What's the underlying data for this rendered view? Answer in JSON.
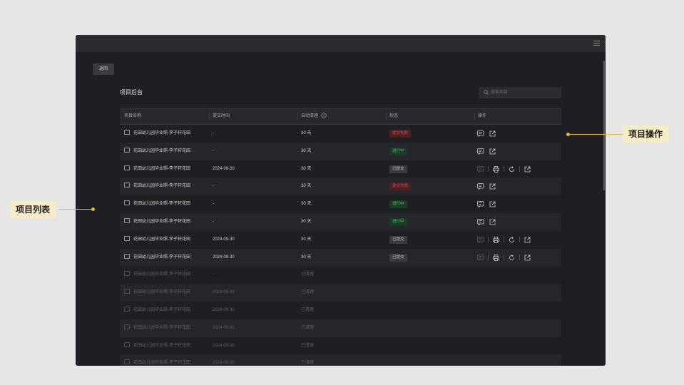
{
  "window": {
    "menu_icon": "hamburger-icon"
  },
  "back_button": "返回",
  "page_title": "项目后台",
  "search": {
    "placeholder": "搜索项目",
    "icon": "search-icon"
  },
  "table": {
    "headers": [
      "项目名称",
      "提交时间",
      "自动清理",
      "状态",
      "操作"
    ],
    "rows": [
      {
        "name": "花田幼儿园毕业照-李子轩花田",
        "time": "-",
        "cleanup": "30 天",
        "status": "提交失败",
        "status_type": "fail",
        "actions": "basic",
        "dim": false
      },
      {
        "name": "花田幼儿园毕业照-李子轩花田",
        "time": "-",
        "cleanup": "30 天",
        "status": "进行中",
        "status_type": "progress",
        "actions": "basic",
        "dim": false
      },
      {
        "name": "花田幼儿园毕业照-李子轩花田",
        "time": "2024-09-30",
        "cleanup": "30 天",
        "status": "已提交",
        "status_type": "submitted",
        "actions": "full",
        "dim": false
      },
      {
        "name": "花田幼儿园毕业照-李子轩花田",
        "time": "-",
        "cleanup": "30 天",
        "status": "提交失败",
        "status_type": "fail",
        "actions": "basic",
        "dim": false
      },
      {
        "name": "花田幼儿园毕业照-李子轩花田",
        "time": "-",
        "cleanup": "30 天",
        "status": "进行中",
        "status_type": "progress",
        "actions": "basic",
        "dim": false
      },
      {
        "name": "花田幼儿园毕业照-李子轩花田",
        "time": "-",
        "cleanup": "30 天",
        "status": "进行中",
        "status_type": "progress",
        "actions": "basic",
        "dim": false
      },
      {
        "name": "花田幼儿园毕业照-李子轩花田",
        "time": "2024-09-30",
        "cleanup": "30 天",
        "status": "已提交",
        "status_type": "submitted",
        "actions": "full",
        "dim": false
      },
      {
        "name": "花田幼儿园毕业照-李子轩花田",
        "time": "2024-09-30",
        "cleanup": "30 天",
        "status": "已提交",
        "status_type": "submitted",
        "actions": "full",
        "dim": false
      },
      {
        "name": "花田幼儿园毕业照-李子轩花田",
        "time": "-",
        "cleanup": "已清理",
        "status": "",
        "status_type": "",
        "actions": "none",
        "dim": true
      },
      {
        "name": "花田幼儿园毕业照-李子轩花田",
        "time": "2024-09-30",
        "cleanup": "已清理",
        "status": "",
        "status_type": "",
        "actions": "none",
        "dim": true
      },
      {
        "name": "花田幼儿园毕业照-李子轩花田",
        "time": "2024-09-30",
        "cleanup": "已清理",
        "status": "",
        "status_type": "",
        "actions": "none",
        "dim": true
      },
      {
        "name": "花田幼儿园毕业照-李子轩花田",
        "time": "2024-09-30",
        "cleanup": "已清理",
        "status": "",
        "status_type": "",
        "actions": "none",
        "dim": true
      },
      {
        "name": "花田幼儿园毕业照-李子轩花田",
        "time": "2024-09-30",
        "cleanup": "已清理",
        "status": "",
        "status_type": "",
        "actions": "none",
        "dim": true
      },
      {
        "name": "花田幼儿园毕业照-李子轩花田",
        "time": "2024-09-30",
        "cleanup": "已清理",
        "status": "",
        "status_type": "",
        "actions": "none",
        "dim": true
      }
    ]
  },
  "callouts": {
    "left": "项目列表",
    "right": "项目操作"
  },
  "colors": {
    "callout_bg": "#f6edc4",
    "callout_line": "#e0b93a",
    "fail": "#e0464d",
    "progress": "#4bc06c"
  }
}
